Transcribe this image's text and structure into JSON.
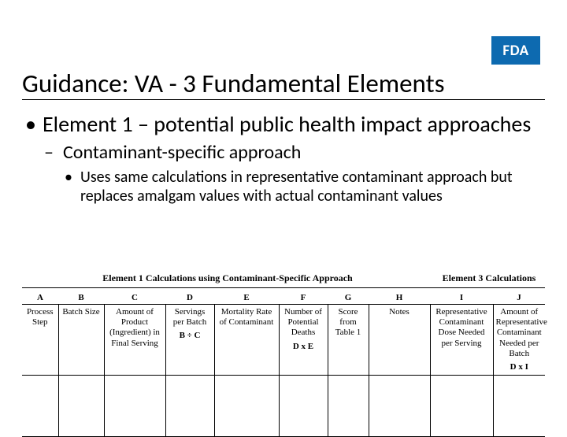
{
  "logo": {
    "text": "FDA",
    "bg": "#0d6ab0",
    "fg": "#ffffff"
  },
  "title": "Guidance: VA - 3 Fundamental Elements",
  "bullets": {
    "lvl1": "Element 1 – potential public health impact approaches",
    "lvl2": "Contaminant-specific approach",
    "lvl3": "Uses same calculations in representative contaminant approach but replaces amalgam values with actual contaminant values"
  },
  "section_headers": {
    "left": "Element 1 Calculations using Contaminant-Specific Approach",
    "right": "Element 3 Calculations"
  },
  "table": {
    "letters": [
      "A",
      "B",
      "C",
      "D",
      "E",
      "F",
      "G",
      "H",
      "I",
      "J"
    ],
    "labels": [
      {
        "text": "Process Step",
        "formula": ""
      },
      {
        "text": "Batch Size",
        "formula": ""
      },
      {
        "text": "Amount of Product (Ingredient) in Final Serving",
        "formula": ""
      },
      {
        "text": "Servings per Batch",
        "formula": "B ÷ C"
      },
      {
        "text": "Mortality Rate of Contaminant",
        "formula": ""
      },
      {
        "text": "Number of Potential Deaths",
        "formula": "D x E"
      },
      {
        "text": "Score from Table 1",
        "formula": ""
      },
      {
        "text": "Notes",
        "formula": ""
      },
      {
        "text": "Representative Contaminant Dose Needed per Serving",
        "formula": ""
      },
      {
        "text": "Amount of Representative Contaminant Needed per Batch",
        "formula": "D x I"
      }
    ]
  }
}
